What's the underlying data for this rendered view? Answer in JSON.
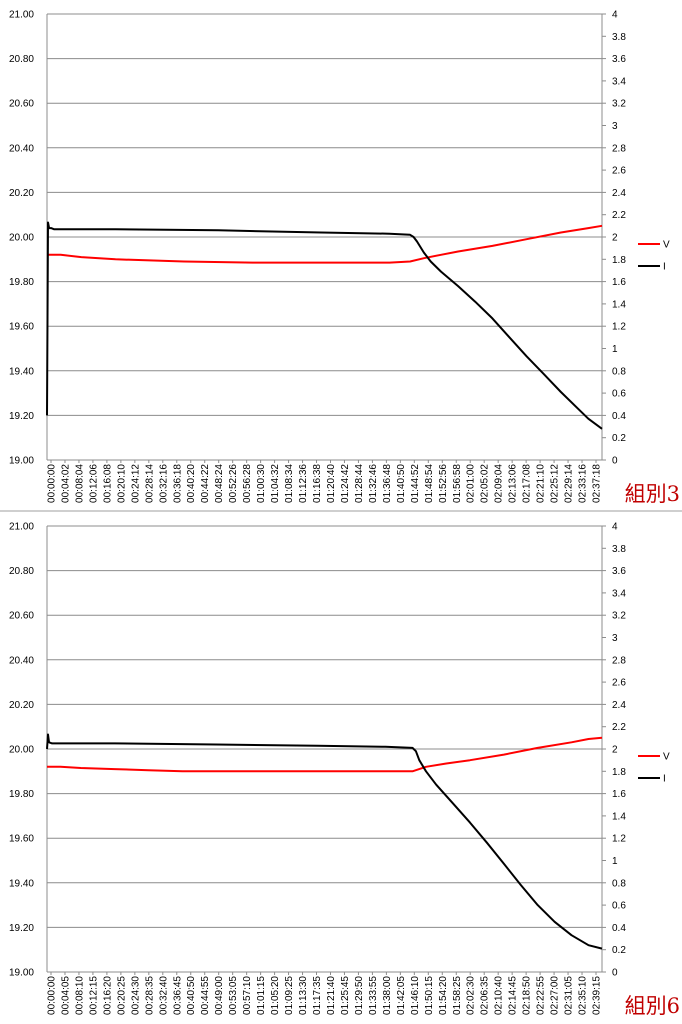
{
  "chart_data": [
    {
      "type": "line",
      "group_label": "組別3",
      "y_left": {
        "ylim": [
          19.0,
          21.0
        ],
        "ticks": [
          "19.00",
          "19.20",
          "19.40",
          "19.60",
          "19.80",
          "20.00",
          "20.20",
          "20.40",
          "20.60",
          "20.80",
          "21.00"
        ]
      },
      "y_right": {
        "ylim": [
          0,
          4
        ],
        "ticks": [
          "0",
          "0.2",
          "0.4",
          "0.6",
          "0.8",
          "1",
          "1.2",
          "1.4",
          "1.6",
          "1.8",
          "2",
          "2.2",
          "2.4",
          "2.6",
          "2.8",
          "3",
          "3.2",
          "3.4",
          "3.6",
          "3.8",
          "4"
        ]
      },
      "x_ticks": [
        "00:00:00",
        "00:04:02",
        "00:08:04",
        "00:12:06",
        "00:16:08",
        "00:20:10",
        "00:24:12",
        "00:28:14",
        "00:32:16",
        "00:36:18",
        "00:40:20",
        "00:44:22",
        "00:48:24",
        "00:52:26",
        "00:56:28",
        "01:00:30",
        "01:04:32",
        "01:08:34",
        "01:12:36",
        "01:16:38",
        "01:20:40",
        "01:24:42",
        "01:28:44",
        "01:32:46",
        "01:36:48",
        "01:40:50",
        "01:44:52",
        "01:48:54",
        "01:52:56",
        "01:56:58",
        "02:01:00",
        "02:05:02",
        "02:09:04",
        "02:13:06",
        "02:17:08",
        "02:21:10",
        "02:25:12",
        "02:29:14",
        "02:33:16",
        "02:37:18"
      ],
      "x_range_minutes": [
        0,
        162
      ],
      "legend_position": "right",
      "series": [
        {
          "name": "V",
          "axis": "left",
          "color": "#ff0000",
          "x": [
            0,
            4,
            10,
            20,
            30,
            40,
            60,
            80,
            100,
            106,
            110,
            115,
            120,
            130,
            140,
            150,
            158,
            162
          ],
          "y": [
            19.92,
            19.92,
            19.91,
            19.9,
            19.895,
            19.89,
            19.885,
            19.885,
            19.885,
            19.89,
            19.905,
            19.92,
            19.935,
            19.96,
            19.99,
            20.02,
            20.04,
            20.05
          ]
        },
        {
          "name": "I",
          "axis": "right",
          "color": "#000000",
          "x": [
            0,
            0.3,
            0.6,
            1.2,
            2,
            20,
            50,
            80,
            100,
            106,
            107,
            108,
            110,
            112,
            115,
            120,
            125,
            130,
            135,
            140,
            145,
            150,
            155,
            158,
            162
          ],
          "y": [
            0.4,
            2.13,
            2.08,
            2.08,
            2.07,
            2.07,
            2.06,
            2.04,
            2.03,
            2.02,
            2.0,
            1.96,
            1.86,
            1.78,
            1.69,
            1.56,
            1.42,
            1.27,
            1.1,
            0.93,
            0.77,
            0.61,
            0.46,
            0.37,
            0.28
          ]
        }
      ]
    },
    {
      "type": "line",
      "group_label": "組別6",
      "y_left": {
        "ylim": [
          19.0,
          21.0
        ],
        "ticks": [
          "19.00",
          "19.20",
          "19.40",
          "19.60",
          "19.80",
          "20.00",
          "20.20",
          "20.40",
          "20.60",
          "20.80",
          "21.00"
        ]
      },
      "y_right": {
        "ylim": [
          0,
          4
        ],
        "ticks": [
          "0",
          "0.2",
          "0.4",
          "0.6",
          "0.8",
          "1",
          "1.2",
          "1.4",
          "1.6",
          "1.8",
          "2",
          "2.2",
          "2.4",
          "2.6",
          "2.8",
          "3",
          "3.2",
          "3.4",
          "3.6",
          "3.8",
          "4"
        ]
      },
      "x_ticks": [
        "00:00:00",
        "00:04:05",
        "00:08:10",
        "00:12:15",
        "00:16:20",
        "00:20:25",
        "00:24:30",
        "00:28:35",
        "00:32:40",
        "00:36:45",
        "00:40:50",
        "00:44:55",
        "00:49:00",
        "00:53:05",
        "00:57:10",
        "01:01:15",
        "01:05:20",
        "01:09:25",
        "01:13:30",
        "01:17:35",
        "01:21:40",
        "01:25:45",
        "01:29:50",
        "01:33:55",
        "01:38:00",
        "01:42:05",
        "01:46:10",
        "01:50:15",
        "01:54:20",
        "01:58:25",
        "02:02:30",
        "02:06:35",
        "02:10:40",
        "02:14:45",
        "02:18:50",
        "02:22:55",
        "02:27:00",
        "02:31:05",
        "02:35:10",
        "02:39:15"
      ],
      "x_range_minutes": [
        0,
        164
      ],
      "legend_position": "right",
      "series": [
        {
          "name": "V",
          "axis": "left",
          "color": "#ff0000",
          "x": [
            0,
            4,
            10,
            20,
            30,
            40,
            60,
            80,
            100,
            108,
            112,
            118,
            125,
            135,
            145,
            155,
            160,
            164
          ],
          "y": [
            19.92,
            19.92,
            19.915,
            19.91,
            19.905,
            19.9,
            19.9,
            19.9,
            19.9,
            19.9,
            19.92,
            19.935,
            19.95,
            19.975,
            20.005,
            20.03,
            20.045,
            20.05
          ]
        },
        {
          "name": "I",
          "axis": "right",
          "color": "#000000",
          "x": [
            0,
            0.3,
            0.6,
            1.5,
            20,
            50,
            80,
            100,
            108,
            109,
            110,
            112,
            115,
            120,
            125,
            130,
            135,
            140,
            145,
            150,
            155,
            160,
            164
          ],
          "y": [
            2.0,
            2.13,
            2.06,
            2.05,
            2.05,
            2.04,
            2.03,
            2.02,
            2.01,
            1.98,
            1.9,
            1.8,
            1.68,
            1.51,
            1.34,
            1.16,
            0.97,
            0.78,
            0.6,
            0.45,
            0.33,
            0.24,
            0.21
          ]
        }
      ]
    }
  ]
}
